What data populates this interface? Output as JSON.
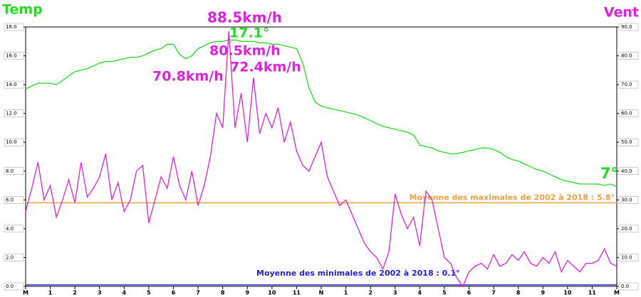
{
  "chart_data": {
    "type": "line",
    "y_title": "Temp",
    "y2_title": "Vent",
    "x": [
      0,
      0.25,
      0.5,
      0.75,
      1,
      1.25,
      1.5,
      1.75,
      2,
      2.25,
      2.5,
      2.75,
      3,
      3.25,
      3.5,
      3.75,
      4,
      4.25,
      4.5,
      4.75,
      5,
      5.25,
      5.5,
      5.75,
      6,
      6.25,
      6.5,
      6.75,
      7,
      7.25,
      7.5,
      7.75,
      8,
      8.25,
      8.5,
      8.75,
      9,
      9.25,
      9.5,
      9.75,
      10,
      10.25,
      10.5,
      10.75,
      11,
      11.25,
      11.5,
      11.75,
      12,
      12.25,
      12.5,
      12.75,
      13,
      13.25,
      13.5,
      13.75,
      14,
      14.25,
      14.5,
      14.75,
      15,
      15.25,
      15.5,
      15.75,
      16,
      16.25,
      16.5,
      16.75,
      17,
      17.25,
      17.5,
      17.75,
      18,
      18.25,
      18.5,
      18.75,
      19,
      19.25,
      19.5,
      19.75,
      20,
      20.25,
      20.5,
      20.75,
      21,
      21.25,
      21.5,
      21.75,
      22,
      22.25,
      22.5,
      22.75,
      23,
      23.25,
      23.5,
      23.75,
      24
    ],
    "xlim": [
      0,
      24
    ],
    "xticks": [
      {
        "value": 0,
        "label": "M"
      },
      1,
      2,
      3,
      4,
      5,
      6,
      7,
      8,
      9,
      10,
      11,
      {
        "value": 12,
        "label": "N"
      },
      {
        "value": 13,
        "label": "1"
      },
      {
        "value": 14,
        "label": "2"
      },
      {
        "value": 15,
        "label": "3"
      },
      {
        "value": 16,
        "label": "4"
      },
      {
        "value": 17,
        "label": "5"
      },
      {
        "value": 18,
        "label": "6"
      },
      {
        "value": 19,
        "label": "7"
      },
      {
        "value": 20,
        "label": "8"
      },
      {
        "value": 21,
        "label": "9"
      },
      {
        "value": 22,
        "label": "10"
      },
      {
        "value": 23,
        "label": "11"
      },
      {
        "value": 24,
        "label": "M"
      }
    ],
    "ylim": [
      0,
      18
    ],
    "yticks": [
      {
        "value": 0,
        "label": "0.0"
      },
      {
        "value": 2,
        "label": "2.0"
      },
      {
        "value": 4,
        "label": "4.0"
      },
      {
        "value": 6,
        "label": "6.0"
      },
      {
        "value": 8,
        "label": "8.0"
      },
      {
        "value": 10,
        "label": "10.0"
      },
      {
        "value": 12,
        "label": "12.0"
      },
      {
        "value": 14,
        "label": "14.0"
      },
      {
        "value": 16,
        "label": "16.0"
      },
      {
        "value": 18,
        "label": "18.0"
      }
    ],
    "y2lim": [
      0,
      90
    ],
    "y2ticks": [
      {
        "value": 0,
        "label": "0.0"
      },
      {
        "value": 10,
        "label": "10.0"
      },
      {
        "value": 20,
        "label": "20.0"
      },
      {
        "value": 30,
        "label": "30.0"
      },
      {
        "value": 40,
        "label": "40.0"
      },
      {
        "value": 50,
        "label": "50.0"
      },
      {
        "value": 60,
        "label": "60.0"
      },
      {
        "value": 70,
        "label": "70.0"
      },
      {
        "value": 80,
        "label": "80.0"
      },
      {
        "value": 90,
        "label": "90.0"
      }
    ],
    "series": [
      {
        "name": "Temp",
        "color": "#22dd22",
        "values": [
          13.7,
          13.9,
          14.1,
          14.1,
          14.1,
          14.0,
          14.3,
          14.6,
          14.9,
          15.0,
          15.1,
          15.3,
          15.5,
          15.6,
          15.6,
          15.7,
          15.8,
          15.9,
          15.9,
          16.0,
          16.2,
          16.4,
          16.5,
          16.8,
          16.8,
          16.1,
          15.8,
          16.0,
          16.5,
          16.7,
          16.9,
          17.0,
          17.0,
          17.1,
          17.1,
          17.0,
          17.0,
          17.0,
          16.9,
          16.9,
          16.8,
          16.8,
          16.7,
          16.6,
          16.5,
          15.5,
          13.8,
          12.8,
          12.5,
          12.4,
          12.3,
          12.2,
          12.1,
          12.0,
          11.9,
          11.7,
          11.5,
          11.3,
          11.1,
          11.0,
          10.9,
          10.8,
          10.7,
          10.5,
          9.8,
          9.7,
          9.6,
          9.4,
          9.3,
          9.2,
          9.2,
          9.3,
          9.4,
          9.5,
          9.6,
          9.6,
          9.5,
          9.3,
          9.0,
          8.8,
          8.7,
          8.5,
          8.3,
          8.1,
          8.0,
          7.8,
          7.6,
          7.4,
          7.3,
          7.2,
          7.1,
          7.1,
          7.1,
          7.1,
          7.0,
          7.1,
          6.9
        ]
      },
      {
        "name": "Vent",
        "color": "#dd22dd",
        "axis": "y2",
        "values": [
          26,
          34,
          43,
          30,
          35,
          24,
          30,
          37,
          29,
          43,
          31,
          34,
          38,
          46,
          30,
          36,
          26,
          30,
          40,
          42,
          22,
          30,
          38,
          34,
          45,
          35,
          30,
          40,
          28,
          35,
          45,
          60,
          55,
          88.5,
          55,
          67,
          50,
          72.4,
          53,
          60,
          55,
          62,
          50,
          57,
          47,
          42,
          40,
          45,
          50,
          38,
          33,
          28,
          30,
          25,
          20,
          15,
          12,
          10,
          6,
          12,
          32,
          25,
          20,
          24,
          14,
          33,
          30,
          20,
          10,
          8,
          3,
          0,
          5,
          7,
          8,
          6,
          11,
          7,
          8,
          11,
          9,
          12,
          8,
          7,
          10,
          8,
          12,
          5,
          9,
          7,
          5,
          8,
          8,
          9,
          13,
          8,
          7
        ]
      }
    ],
    "hlines": [
      {
        "value": 5.8,
        "label": "Moyenne des maximales de 2002 à 2018 : 5.8°",
        "color": "#f0a040"
      },
      {
        "value": 0.1,
        "label": "Moyenne des minimales de 2002 à 2018 : 0.1°",
        "color": "#2222cc"
      }
    ],
    "annotations": [
      {
        "text": "88.5km/h",
        "color": "#dd22dd"
      },
      {
        "text": "17.1°",
        "color": "#22dd22"
      },
      {
        "text": "80.5km/h",
        "color": "#dd22dd"
      },
      {
        "text": "72.4km/h",
        "color": "#dd22dd"
      },
      {
        "text": "70.8km/h",
        "color": "#dd22dd"
      },
      {
        "text": "7°",
        "color": "#22dd22"
      }
    ]
  }
}
